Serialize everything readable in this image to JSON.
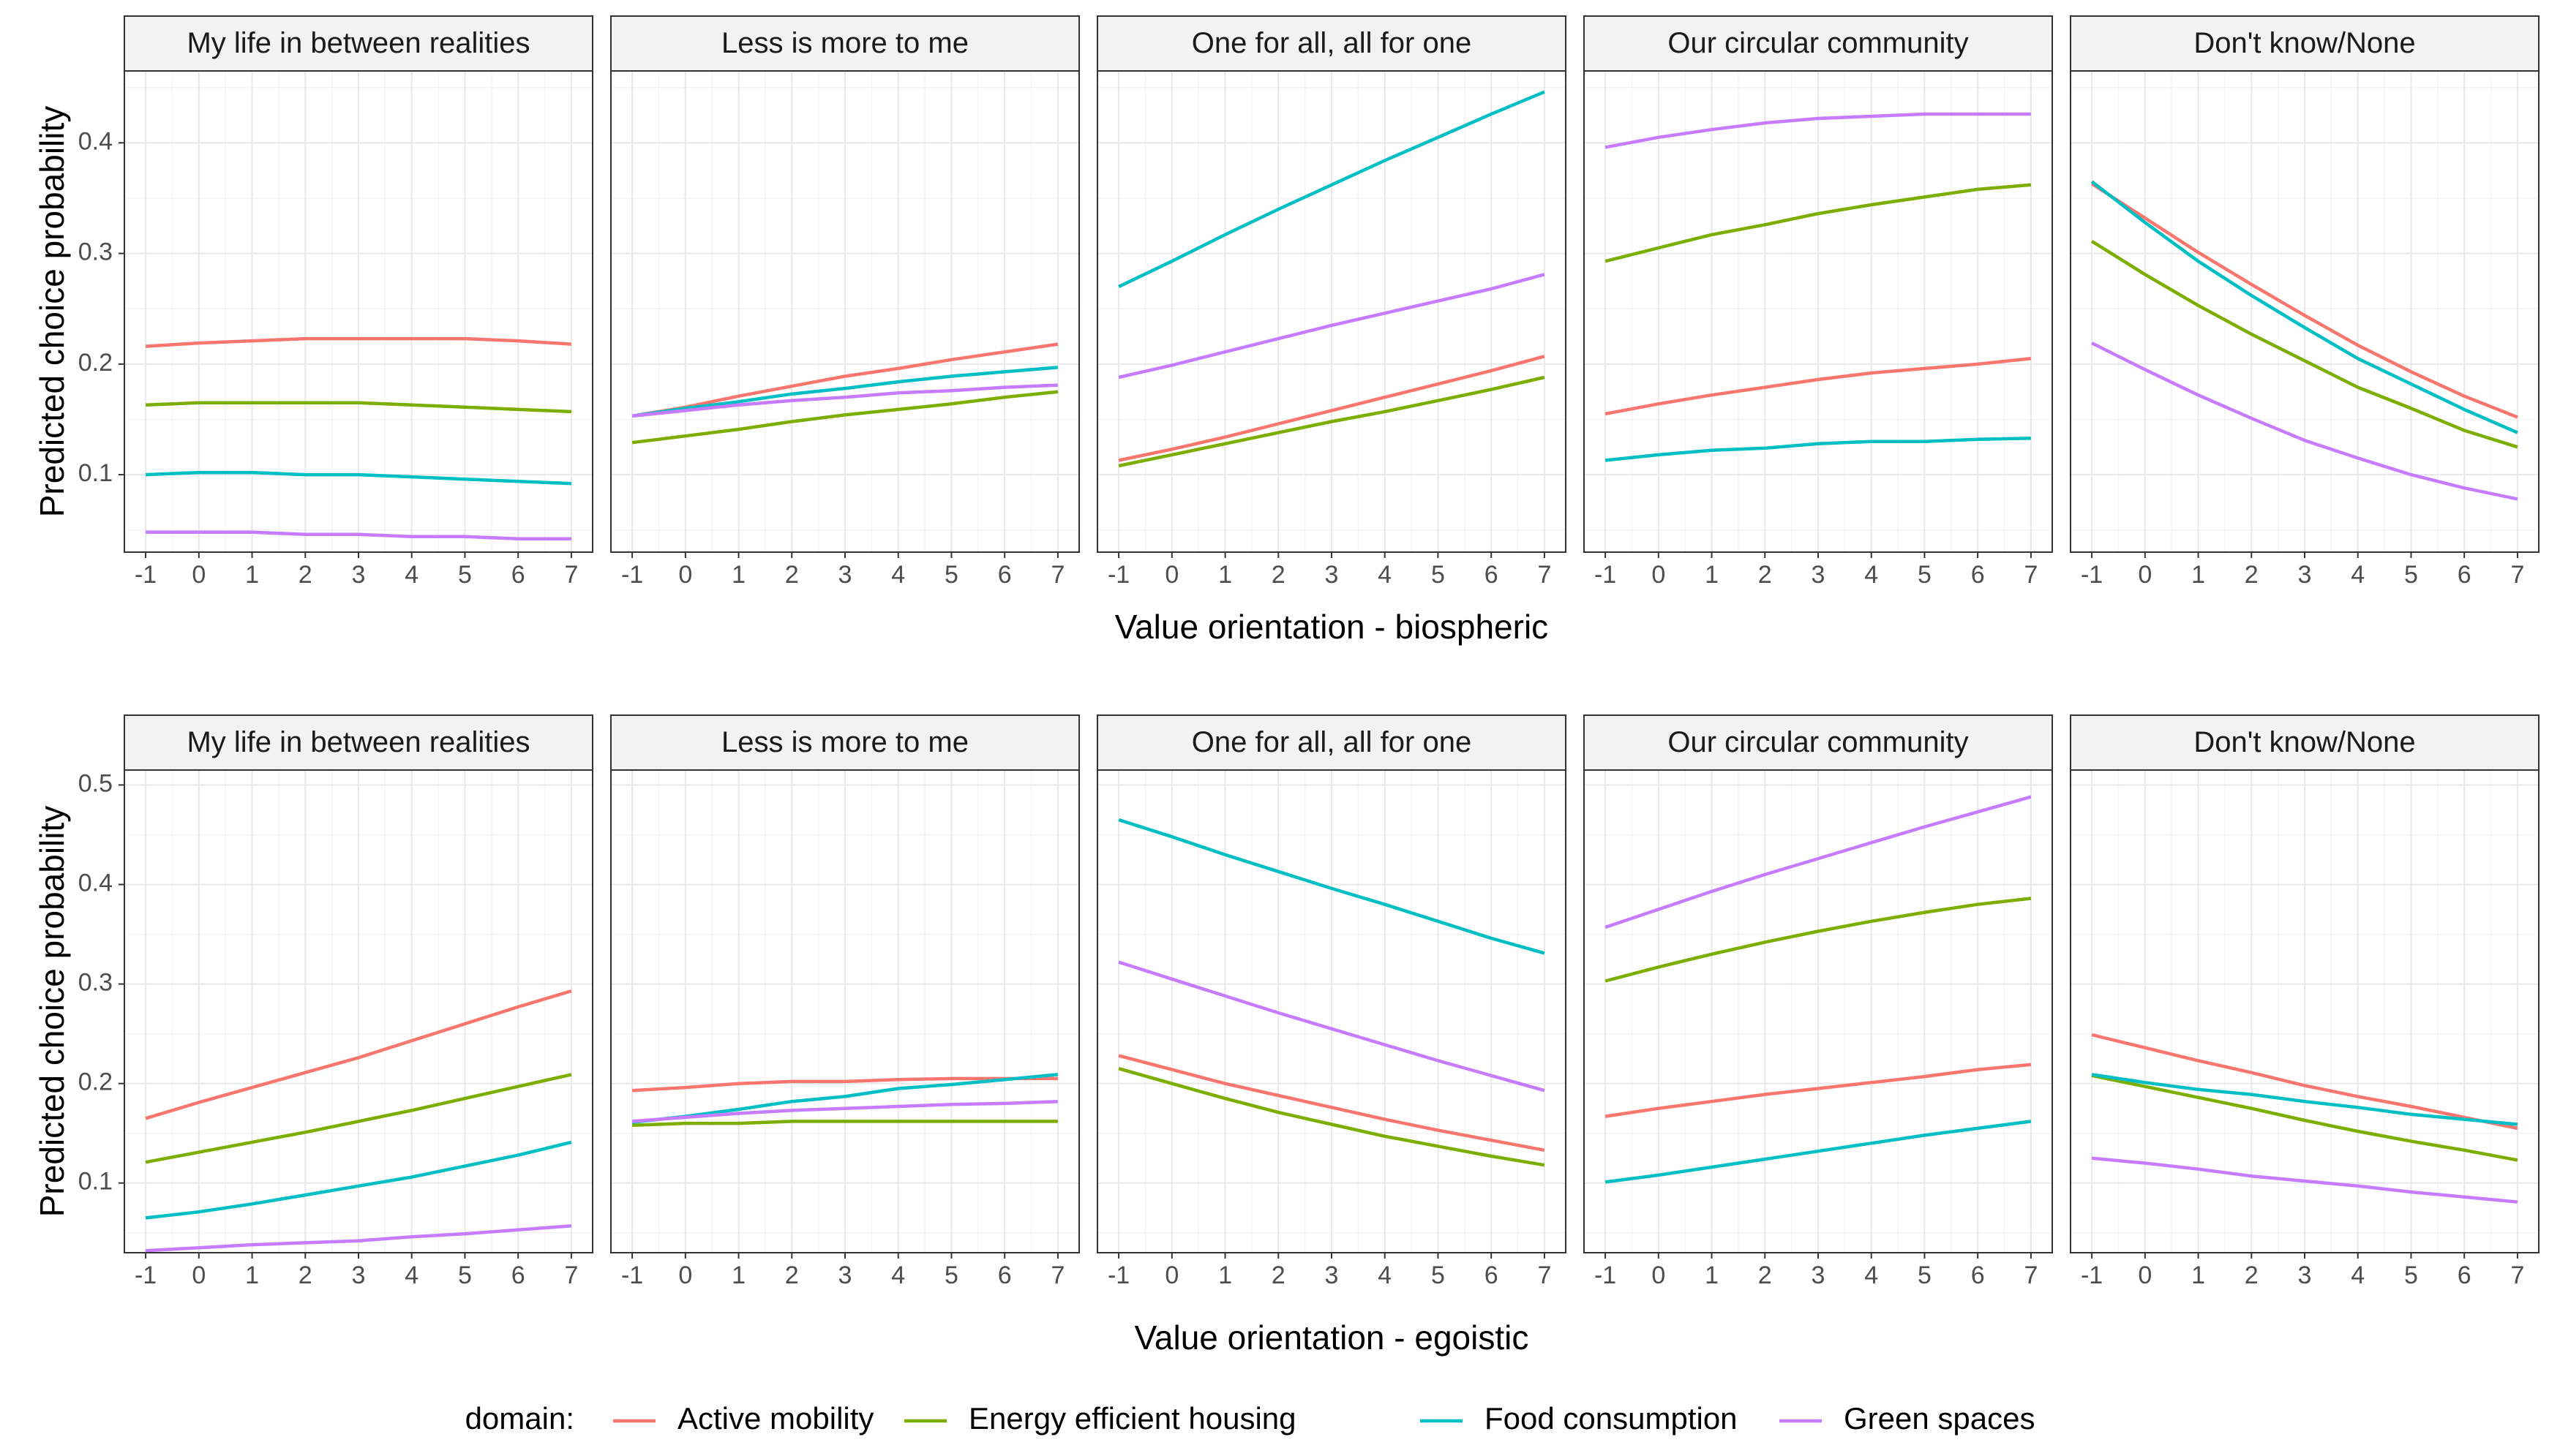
{
  "chart_data": {
    "type": "line",
    "y_axis_title": "Predicted choice probability",
    "facet_labels": [
      "My life in between realities",
      "Less is more to me",
      "One for all, all for one",
      "Our circular community",
      "Don't know/None"
    ],
    "x": [
      -1,
      0,
      1,
      2,
      3,
      4,
      5,
      6,
      7
    ],
    "x_tick_labels": [
      "-1",
      "0",
      "1",
      "2",
      "3",
      "4",
      "5",
      "6",
      "7"
    ],
    "legend": {
      "title": "domain:",
      "position": "bottom",
      "entries": [
        {
          "name": "Active mobility",
          "color": "#F8766D"
        },
        {
          "name": "Energy efficient housing",
          "color": "#7CAE00"
        },
        {
          "name": "Food consumption",
          "color": "#00BFC4"
        },
        {
          "name": "Green spaces",
          "color": "#C77CFF"
        }
      ]
    },
    "panels": [
      {
        "xlabel": "Value orientation - biospheric",
        "ylim": [
          0.03,
          0.465
        ],
        "y_ticks": [
          0.1,
          0.2,
          0.3,
          0.4
        ],
        "y_tick_labels": [
          "0.1",
          "0.2",
          "0.3",
          "0.4"
        ],
        "facets": [
          {
            "series": [
              {
                "name": "Active mobility",
                "values": [
                  0.216,
                  0.219,
                  0.221,
                  0.223,
                  0.223,
                  0.223,
                  0.223,
                  0.221,
                  0.218
                ]
              },
              {
                "name": "Energy efficient housing",
                "values": [
                  0.163,
                  0.165,
                  0.165,
                  0.165,
                  0.165,
                  0.163,
                  0.161,
                  0.159,
                  0.157
                ]
              },
              {
                "name": "Food consumption",
                "values": [
                  0.1,
                  0.102,
                  0.102,
                  0.1,
                  0.1,
                  0.098,
                  0.096,
                  0.094,
                  0.092
                ]
              },
              {
                "name": "Green spaces",
                "values": [
                  0.048,
                  0.048,
                  0.048,
                  0.046,
                  0.046,
                  0.044,
                  0.044,
                  0.042,
                  0.042
                ]
              }
            ]
          },
          {
            "series": [
              {
                "name": "Active mobility",
                "values": [
                  0.153,
                  0.161,
                  0.171,
                  0.18,
                  0.189,
                  0.196,
                  0.204,
                  0.211,
                  0.218
                ]
              },
              {
                "name": "Energy efficient housing",
                "values": [
                  0.129,
                  0.135,
                  0.141,
                  0.148,
                  0.154,
                  0.159,
                  0.164,
                  0.17,
                  0.175
                ]
              },
              {
                "name": "Food consumption",
                "values": [
                  0.153,
                  0.16,
                  0.166,
                  0.173,
                  0.178,
                  0.184,
                  0.189,
                  0.193,
                  0.197
                ]
              },
              {
                "name": "Green spaces",
                "values": [
                  0.153,
                  0.158,
                  0.163,
                  0.167,
                  0.17,
                  0.174,
                  0.176,
                  0.179,
                  0.181
                ]
              }
            ]
          },
          {
            "series": [
              {
                "name": "Active mobility",
                "values": [
                  0.113,
                  0.123,
                  0.134,
                  0.146,
                  0.158,
                  0.17,
                  0.182,
                  0.194,
                  0.207
                ]
              },
              {
                "name": "Energy efficient housing",
                "values": [
                  0.108,
                  0.118,
                  0.128,
                  0.138,
                  0.148,
                  0.157,
                  0.167,
                  0.177,
                  0.188
                ]
              },
              {
                "name": "Food consumption",
                "values": [
                  0.27,
                  0.293,
                  0.317,
                  0.34,
                  0.362,
                  0.384,
                  0.405,
                  0.426,
                  0.446
                ]
              },
              {
                "name": "Green spaces",
                "values": [
                  0.188,
                  0.199,
                  0.211,
                  0.223,
                  0.235,
                  0.246,
                  0.257,
                  0.268,
                  0.281
                ]
              }
            ]
          },
          {
            "series": [
              {
                "name": "Active mobility",
                "values": [
                  0.155,
                  0.164,
                  0.172,
                  0.179,
                  0.186,
                  0.192,
                  0.196,
                  0.2,
                  0.205
                ]
              },
              {
                "name": "Energy efficient housing",
                "values": [
                  0.293,
                  0.305,
                  0.317,
                  0.326,
                  0.336,
                  0.344,
                  0.351,
                  0.358,
                  0.362
                ]
              },
              {
                "name": "Food consumption",
                "values": [
                  0.113,
                  0.118,
                  0.122,
                  0.124,
                  0.128,
                  0.13,
                  0.13,
                  0.132,
                  0.133
                ]
              },
              {
                "name": "Green spaces",
                "values": [
                  0.396,
                  0.405,
                  0.412,
                  0.418,
                  0.422,
                  0.424,
                  0.426,
                  0.426,
                  0.426
                ]
              }
            ]
          },
          {
            "series": [
              {
                "name": "Active mobility",
                "values": [
                  0.363,
                  0.332,
                  0.301,
                  0.272,
                  0.244,
                  0.217,
                  0.193,
                  0.171,
                  0.152
                ]
              },
              {
                "name": "Energy efficient housing",
                "values": [
                  0.311,
                  0.281,
                  0.253,
                  0.227,
                  0.203,
                  0.179,
                  0.16,
                  0.14,
                  0.125
                ]
              },
              {
                "name": "Food consumption",
                "values": [
                  0.365,
                  0.328,
                  0.293,
                  0.262,
                  0.233,
                  0.205,
                  0.182,
                  0.159,
                  0.138
                ]
              },
              {
                "name": "Green spaces",
                "values": [
                  0.219,
                  0.195,
                  0.172,
                  0.151,
                  0.131,
                  0.115,
                  0.1,
                  0.088,
                  0.078
                ]
              }
            ]
          }
        ]
      },
      {
        "xlabel": "Value orientation - egoistic",
        "ylim": [
          0.03,
          0.515
        ],
        "y_ticks": [
          0.1,
          0.2,
          0.3,
          0.4,
          0.5
        ],
        "y_tick_labels": [
          "0.1",
          "0.2",
          "0.3",
          "0.4",
          "0.5"
        ],
        "facets": [
          {
            "series": [
              {
                "name": "Active mobility",
                "values": [
                  0.165,
                  0.181,
                  0.196,
                  0.211,
                  0.226,
                  0.243,
                  0.26,
                  0.277,
                  0.293
                ]
              },
              {
                "name": "Energy efficient housing",
                "values": [
                  0.121,
                  0.131,
                  0.141,
                  0.151,
                  0.162,
                  0.173,
                  0.185,
                  0.197,
                  0.209
                ]
              },
              {
                "name": "Food consumption",
                "values": [
                  0.065,
                  0.071,
                  0.079,
                  0.088,
                  0.097,
                  0.106,
                  0.117,
                  0.128,
                  0.141
                ]
              },
              {
                "name": "Green spaces",
                "values": [
                  0.032,
                  0.035,
                  0.038,
                  0.04,
                  0.042,
                  0.046,
                  0.049,
                  0.053,
                  0.057
                ]
              }
            ]
          },
          {
            "series": [
              {
                "name": "Active mobility",
                "values": [
                  0.193,
                  0.196,
                  0.2,
                  0.202,
                  0.202,
                  0.204,
                  0.205,
                  0.205,
                  0.205
                ]
              },
              {
                "name": "Energy efficient housing",
                "values": [
                  0.158,
                  0.16,
                  0.16,
                  0.162,
                  0.162,
                  0.162,
                  0.162,
                  0.162,
                  0.162
                ]
              },
              {
                "name": "Food consumption",
                "values": [
                  0.161,
                  0.167,
                  0.174,
                  0.182,
                  0.187,
                  0.195,
                  0.199,
                  0.204,
                  0.209
                ]
              },
              {
                "name": "Green spaces",
                "values": [
                  0.162,
                  0.166,
                  0.17,
                  0.173,
                  0.175,
                  0.177,
                  0.179,
                  0.18,
                  0.182
                ]
              }
            ]
          },
          {
            "series": [
              {
                "name": "Active mobility",
                "values": [
                  0.228,
                  0.214,
                  0.2,
                  0.188,
                  0.176,
                  0.164,
                  0.153,
                  0.143,
                  0.133
                ]
              },
              {
                "name": "Energy efficient housing",
                "values": [
                  0.215,
                  0.2,
                  0.185,
                  0.171,
                  0.159,
                  0.147,
                  0.137,
                  0.127,
                  0.118
                ]
              },
              {
                "name": "Food consumption",
                "values": [
                  0.465,
                  0.448,
                  0.43,
                  0.413,
                  0.396,
                  0.38,
                  0.363,
                  0.346,
                  0.331
                ]
              },
              {
                "name": "Green spaces",
                "values": [
                  0.322,
                  0.305,
                  0.288,
                  0.271,
                  0.255,
                  0.239,
                  0.223,
                  0.208,
                  0.193
                ]
              }
            ]
          },
          {
            "series": [
              {
                "name": "Active mobility",
                "values": [
                  0.167,
                  0.175,
                  0.182,
                  0.189,
                  0.195,
                  0.201,
                  0.207,
                  0.214,
                  0.219
                ]
              },
              {
                "name": "Energy efficient housing",
                "values": [
                  0.303,
                  0.317,
                  0.33,
                  0.342,
                  0.353,
                  0.363,
                  0.372,
                  0.38,
                  0.386
                ]
              },
              {
                "name": "Food consumption",
                "values": [
                  0.101,
                  0.108,
                  0.116,
                  0.124,
                  0.132,
                  0.14,
                  0.148,
                  0.155,
                  0.162
                ]
              },
              {
                "name": "Green spaces",
                "values": [
                  0.357,
                  0.375,
                  0.393,
                  0.41,
                  0.426,
                  0.442,
                  0.458,
                  0.473,
                  0.488
                ]
              }
            ]
          },
          {
            "series": [
              {
                "name": "Active mobility",
                "values": [
                  0.249,
                  0.236,
                  0.223,
                  0.211,
                  0.198,
                  0.187,
                  0.177,
                  0.166,
                  0.155
                ]
              },
              {
                "name": "Energy efficient housing",
                "values": [
                  0.208,
                  0.197,
                  0.186,
                  0.175,
                  0.163,
                  0.152,
                  0.142,
                  0.133,
                  0.123
                ]
              },
              {
                "name": "Food consumption",
                "values": [
                  0.209,
                  0.201,
                  0.194,
                  0.189,
                  0.182,
                  0.176,
                  0.169,
                  0.164,
                  0.159
                ]
              },
              {
                "name": "Green spaces",
                "values": [
                  0.125,
                  0.12,
                  0.114,
                  0.107,
                  0.102,
                  0.097,
                  0.091,
                  0.086,
                  0.081
                ]
              }
            ]
          }
        ]
      }
    ]
  }
}
